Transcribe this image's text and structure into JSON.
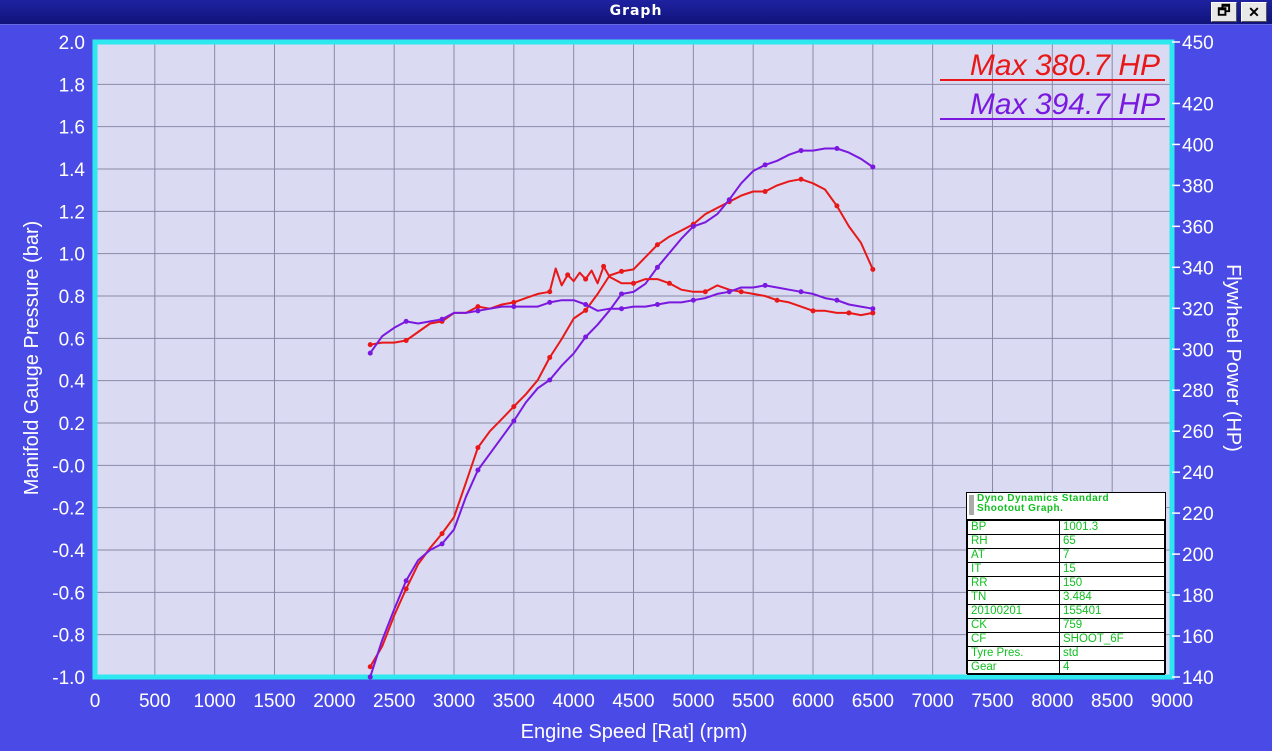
{
  "window": {
    "title": "Graph",
    "restore_icon": "restore-icon",
    "close_icon": "close-icon",
    "restore_glyph": "🗗",
    "close_glyph": "✕"
  },
  "colors": {
    "background": "#4a4ae6",
    "plot_bg": "#dadaf2",
    "plot_border": "#2ee8f0",
    "grid": "#8a8aa8",
    "run1": "#e81818",
    "run2": "#7a18e0",
    "text": "#ffffff",
    "info_text": "#10c020"
  },
  "legend": [
    {
      "label": "Max 380.7 HP",
      "color": "#e81818"
    },
    {
      "label": "Max 394.7 HP",
      "color": "#7a18e0"
    }
  ],
  "info_box": {
    "heading": [
      "Dyno Dynamics Standard",
      "Shootout Graph."
    ],
    "rows": [
      [
        "BP",
        "1001.3"
      ],
      [
        "RH",
        "65"
      ],
      [
        "AT",
        "7"
      ],
      [
        "IT",
        "15"
      ],
      [
        "RR",
        "150"
      ],
      [
        "TN",
        "3.484"
      ],
      [
        "20100201",
        "155401"
      ],
      [
        "CK",
        "759"
      ],
      [
        "CF",
        "SHOOT_6F"
      ],
      [
        "Tyre Pres.",
        "std"
      ],
      [
        "Gear",
        "4"
      ]
    ]
  },
  "chart_data": {
    "type": "line",
    "xlabel": "Engine Speed [Rat] (rpm)",
    "ylabel": "Manifold Gauge Pressure (bar)",
    "y2label": "Flywheel Power (HP)",
    "xlim": [
      0,
      9000
    ],
    "ylim": [
      -1.0,
      2.0
    ],
    "y2lim": [
      140,
      450
    ],
    "xticks": [
      0,
      500,
      1000,
      1500,
      2000,
      2500,
      3000,
      3500,
      4000,
      4500,
      5000,
      5500,
      6000,
      6500,
      7000,
      7500,
      8000,
      8500,
      9000
    ],
    "yticks": [
      -1.0,
      -0.8,
      -0.6,
      -0.4,
      -0.2,
      -0.0,
      0.2,
      0.4,
      0.6,
      0.8,
      1.0,
      1.2,
      1.4,
      1.6,
      1.8,
      2.0
    ],
    "ytick_labels": [
      "-1.0",
      "-0.8",
      "-0.6",
      "-0.4",
      "-0.2",
      "-0.0",
      "0.2",
      "0.4",
      "0.6",
      "0.8",
      "1.0",
      "1.2",
      "1.4",
      "1.6",
      "1.8",
      "2.0"
    ],
    "y2ticks": [
      140,
      160,
      180,
      200,
      220,
      240,
      260,
      280,
      300,
      320,
      340,
      360,
      380,
      400,
      420,
      450
    ],
    "grid": true,
    "legend_position": "top-right",
    "series": [
      {
        "name": "Max 380.7 HP",
        "axis": "y2",
        "color": "#e81818",
        "x": [
          2300,
          2400,
          2500,
          2600,
          2700,
          2800,
          2900,
          3000,
          3100,
          3200,
          3300,
          3400,
          3500,
          3600,
          3700,
          3800,
          3900,
          4000,
          4100,
          4200,
          4300,
          4400,
          4500,
          4600,
          4700,
          4800,
          4900,
          5000,
          5100,
          5200,
          5300,
          5400,
          5500,
          5600,
          5700,
          5800,
          5900,
          6000,
          6100,
          6200,
          6300,
          6400,
          6500
        ],
        "y": [
          145,
          155,
          170,
          183,
          195,
          203,
          210,
          218,
          235,
          252,
          260,
          266,
          272,
          278,
          285,
          296,
          305,
          315,
          319,
          327,
          336,
          338,
          339,
          345,
          351,
          355,
          358,
          361,
          366,
          369,
          372,
          375,
          377,
          377,
          380,
          382,
          383,
          381,
          378,
          370,
          360,
          352,
          339
        ]
      },
      {
        "name": "Max 394.7 HP",
        "axis": "y2",
        "color": "#7a18e0",
        "x": [
          2300,
          2400,
          2500,
          2600,
          2700,
          2800,
          2900,
          3000,
          3100,
          3200,
          3300,
          3400,
          3500,
          3600,
          3700,
          3800,
          3900,
          4000,
          4100,
          4200,
          4300,
          4400,
          4500,
          4600,
          4700,
          4800,
          4900,
          5000,
          5100,
          5200,
          5300,
          5400,
          5500,
          5600,
          5700,
          5800,
          5900,
          6000,
          6100,
          6200,
          6300,
          6400,
          6500
        ],
        "y": [
          140,
          158,
          173,
          187,
          197,
          202,
          205,
          212,
          228,
          241,
          249,
          257,
          265,
          274,
          281,
          285,
          292,
          298,
          306,
          312,
          319,
          327,
          328,
          332,
          340,
          347,
          354,
          360,
          362,
          366,
          373,
          381,
          387,
          390,
          392,
          395,
          397,
          397,
          398,
          398,
          396,
          393,
          389
        ]
      },
      {
        "name": "",
        "axis": "y",
        "color": "#e81818",
        "x": [
          2300,
          2400,
          2500,
          2600,
          2700,
          2800,
          2900,
          3000,
          3100,
          3200,
          3300,
          3400,
          3500,
          3600,
          3700,
          3800,
          3850,
          3900,
          3950,
          4000,
          4050,
          4100,
          4150,
          4200,
          4250,
          4300,
          4400,
          4500,
          4600,
          4700,
          4800,
          4900,
          5000,
          5100,
          5200,
          5300,
          5400,
          5500,
          5600,
          5700,
          5800,
          5900,
          6000,
          6100,
          6200,
          6300,
          6400,
          6500
        ],
        "y": [
          0.57,
          0.58,
          0.58,
          0.59,
          0.63,
          0.67,
          0.68,
          0.72,
          0.72,
          0.75,
          0.74,
          0.76,
          0.77,
          0.79,
          0.81,
          0.82,
          0.93,
          0.85,
          0.9,
          0.87,
          0.91,
          0.88,
          0.92,
          0.86,
          0.94,
          0.89,
          0.86,
          0.86,
          0.88,
          0.88,
          0.86,
          0.83,
          0.82,
          0.82,
          0.85,
          0.83,
          0.82,
          0.81,
          0.8,
          0.78,
          0.77,
          0.75,
          0.73,
          0.73,
          0.72,
          0.72,
          0.71,
          0.72
        ]
      },
      {
        "name": "",
        "axis": "y",
        "color": "#7a18e0",
        "x": [
          2300,
          2400,
          2500,
          2600,
          2700,
          2800,
          2900,
          3000,
          3100,
          3200,
          3300,
          3400,
          3500,
          3600,
          3700,
          3800,
          3900,
          4000,
          4100,
          4200,
          4300,
          4400,
          4500,
          4600,
          4700,
          4800,
          4900,
          5000,
          5100,
          5200,
          5300,
          5400,
          5500,
          5600,
          5700,
          5800,
          5900,
          6000,
          6100,
          6200,
          6300,
          6400,
          6500
        ],
        "y": [
          0.53,
          0.61,
          0.65,
          0.68,
          0.67,
          0.68,
          0.69,
          0.72,
          0.72,
          0.73,
          0.74,
          0.75,
          0.75,
          0.75,
          0.75,
          0.77,
          0.78,
          0.78,
          0.76,
          0.73,
          0.74,
          0.74,
          0.75,
          0.75,
          0.76,
          0.77,
          0.77,
          0.78,
          0.79,
          0.81,
          0.82,
          0.84,
          0.84,
          0.85,
          0.84,
          0.83,
          0.82,
          0.81,
          0.79,
          0.78,
          0.76,
          0.75,
          0.74
        ]
      }
    ]
  }
}
